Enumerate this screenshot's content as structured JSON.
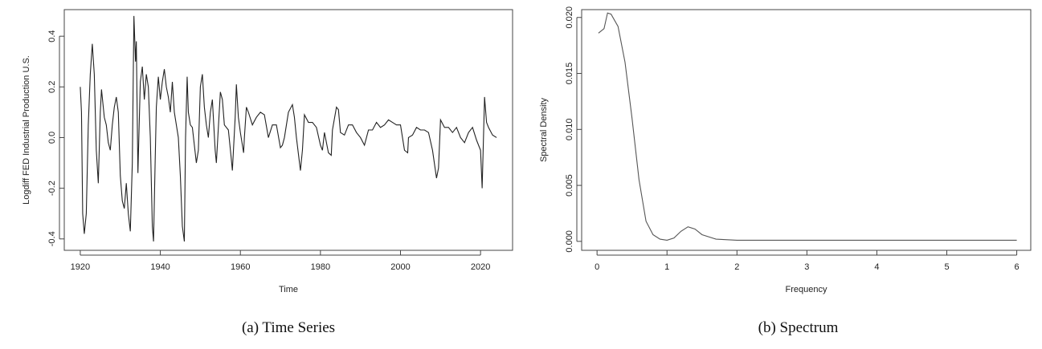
{
  "chart_data": [
    {
      "type": "line",
      "caption": "(a) Time Series",
      "xlabel": "Time",
      "ylabel": "Logdiff FED Industrial Production U.S.",
      "color": "#222222",
      "x": [
        1920,
        1920.3,
        1920.6,
        1921,
        1921.5,
        1922,
        1922.5,
        1923,
        1923.5,
        1924,
        1924.5,
        1925,
        1925.3,
        1926,
        1926.5,
        1927,
        1927.5,
        1928,
        1928.5,
        1929,
        1929.5,
        1930,
        1930.5,
        1931,
        1931.5,
        1932,
        1932.5,
        1933,
        1933.4,
        1933.8,
        1934,
        1934.4,
        1934.8,
        1935,
        1935.5,
        1936,
        1936.5,
        1937,
        1937.5,
        1938,
        1938.3,
        1938.7,
        1939,
        1939.5,
        1940,
        1940.5,
        1941,
        1941.5,
        1942,
        1942.5,
        1943,
        1943.5,
        1944,
        1944.5,
        1945,
        1945.5,
        1946,
        1946.3,
        1946.7,
        1947,
        1947.5,
        1948,
        1949,
        1949.5,
        1950,
        1950.5,
        1951,
        1951.5,
        1952,
        1952.5,
        1953,
        1953.7,
        1954,
        1955,
        1955.5,
        1956,
        1957,
        1957.7,
        1958,
        1958.7,
        1959,
        1959.5,
        1960,
        1960.8,
        1961,
        1961.5,
        1962,
        1963,
        1964,
        1965,
        1966,
        1967,
        1968,
        1969,
        1970,
        1970.5,
        1971,
        1972,
        1973,
        1973.5,
        1974,
        1975,
        1975.5,
        1976,
        1977,
        1978,
        1979,
        1980,
        1980.5,
        1981,
        1982,
        1982.7,
        1983,
        1984,
        1984.5,
        1985,
        1986,
        1987,
        1988,
        1989,
        1990,
        1991,
        1992,
        1993,
        1994,
        1995,
        1996,
        1997,
        1998,
        1999,
        2000,
        2001,
        2001.8,
        2002,
        2003,
        2004,
        2005,
        2006,
        2007,
        2008,
        2009,
        2009.5,
        2010,
        2011,
        2012,
        2013,
        2014,
        2015,
        2016,
        2017,
        2018,
        2019,
        2020,
        2020.4,
        2021,
        2021.5,
        2022,
        2023,
        2024
      ],
      "values": [
        0.2,
        0.1,
        -0.3,
        -0.38,
        -0.3,
        0.05,
        0.25,
        0.37,
        0.25,
        -0.05,
        -0.18,
        0.1,
        0.19,
        0.08,
        0.05,
        -0.02,
        -0.05,
        0.05,
        0.12,
        0.16,
        0.1,
        -0.15,
        -0.25,
        -0.28,
        -0.18,
        -0.3,
        -0.37,
        -0.1,
        0.48,
        0.3,
        0.38,
        -0.14,
        0.1,
        0.22,
        0.28,
        0.15,
        0.25,
        0.2,
        0.0,
        -0.35,
        -0.41,
        -0.1,
        0.12,
        0.24,
        0.15,
        0.22,
        0.27,
        0.2,
        0.16,
        0.1,
        0.22,
        0.1,
        0.05,
        0.0,
        -0.15,
        -0.35,
        -0.41,
        0.0,
        0.24,
        0.1,
        0.05,
        0.04,
        -0.1,
        -0.05,
        0.2,
        0.25,
        0.12,
        0.05,
        0.0,
        0.1,
        0.15,
        -0.05,
        -0.1,
        0.18,
        0.15,
        0.05,
        0.03,
        -0.08,
        -0.13,
        0.08,
        0.21,
        0.08,
        0.02,
        -0.06,
        0.0,
        0.12,
        0.1,
        0.05,
        0.08,
        0.1,
        0.09,
        0.0,
        0.05,
        0.05,
        -0.04,
        -0.03,
        0.0,
        0.1,
        0.13,
        0.08,
        0.0,
        -0.13,
        -0.05,
        0.09,
        0.06,
        0.06,
        0.04,
        -0.03,
        -0.05,
        0.02,
        -0.06,
        -0.07,
        0.03,
        0.12,
        0.11,
        0.02,
        0.01,
        0.05,
        0.05,
        0.02,
        0.0,
        -0.03,
        0.03,
        0.03,
        0.06,
        0.04,
        0.05,
        0.07,
        0.06,
        0.05,
        0.05,
        -0.05,
        -0.06,
        0.0,
        0.01,
        0.04,
        0.03,
        0.03,
        0.02,
        -0.05,
        -0.16,
        -0.12,
        0.07,
        0.04,
        0.04,
        0.02,
        0.04,
        0.0,
        -0.02,
        0.02,
        0.04,
        -0.01,
        -0.05,
        -0.2,
        0.16,
        0.06,
        0.04,
        0.01,
        0.0
      ],
      "xlim": [
        1916,
        2028
      ],
      "xticks": [
        1920,
        1940,
        1960,
        1980,
        2000,
        2020
      ],
      "ylim": [
        -0.445,
        0.505
      ],
      "yticks": [
        -0.4,
        -0.2,
        {
          "value": 0,
          "label": "0.0"
        },
        0.2,
        0.4
      ]
    },
    {
      "type": "line",
      "caption": "(b) Spectrum",
      "xlabel": "Frequency",
      "ylabel": "Spectral Density",
      "color": "#555555",
      "x": [
        0.02,
        0.1,
        0.15,
        0.2,
        0.3,
        0.4,
        0.5,
        0.6,
        0.7,
        0.8,
        0.9,
        1.0,
        1.1,
        1.2,
        1.3,
        1.4,
        1.5,
        1.7,
        2.0,
        3,
        4,
        5,
        6
      ],
      "values": [
        0.0186,
        0.019,
        0.0204,
        0.0203,
        0.0192,
        0.016,
        0.011,
        0.0055,
        0.0018,
        0.0006,
        0.0002,
        0.0001,
        0.0003,
        0.0009,
        0.0013,
        0.0011,
        0.0006,
        0.0002,
        0.0001,
        0.0001,
        0.0001,
        0.0001,
        0.0001
      ],
      "xlim": [
        -0.22,
        6.2
      ],
      "xticks": [
        0,
        1,
        2,
        3,
        4,
        5,
        6
      ],
      "ylim": [
        -0.0008,
        0.0207
      ],
      "yticks": [
        {
          "value": 0,
          "label": "0.000"
        },
        {
          "value": 0.005,
          "label": "0.005"
        },
        {
          "value": 0.01,
          "label": "0.010"
        },
        {
          "value": 0.015,
          "label": "0.015"
        },
        {
          "value": 0.02,
          "label": "0.020"
        }
      ]
    }
  ]
}
